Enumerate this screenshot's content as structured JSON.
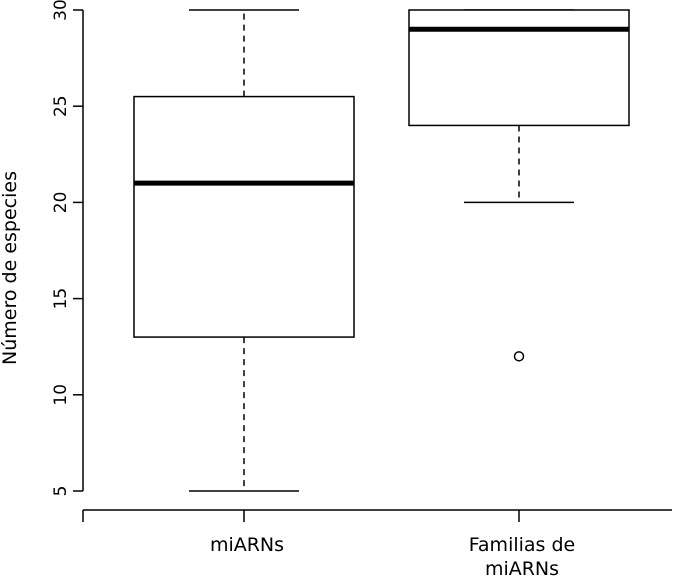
{
  "chart_data": {
    "type": "boxplot",
    "ylabel": "Número de especies",
    "ylim": [
      4,
      30
    ],
    "yticks": [
      5,
      10,
      15,
      20,
      25,
      30
    ],
    "grid": false,
    "legend": "none",
    "groups": [
      {
        "label_lines": [
          "miARNs"
        ],
        "whisker_low": 5,
        "q1": 13,
        "median": 21,
        "q3": 25.5,
        "whisker_high": 30,
        "outliers": []
      },
      {
        "label_lines": [
          "Familias de",
          "miARNs"
        ],
        "whisker_low": 20,
        "q1": 24,
        "median": 29,
        "q3": 30,
        "whisker_high": 30,
        "outliers": [
          12
        ]
      }
    ]
  }
}
